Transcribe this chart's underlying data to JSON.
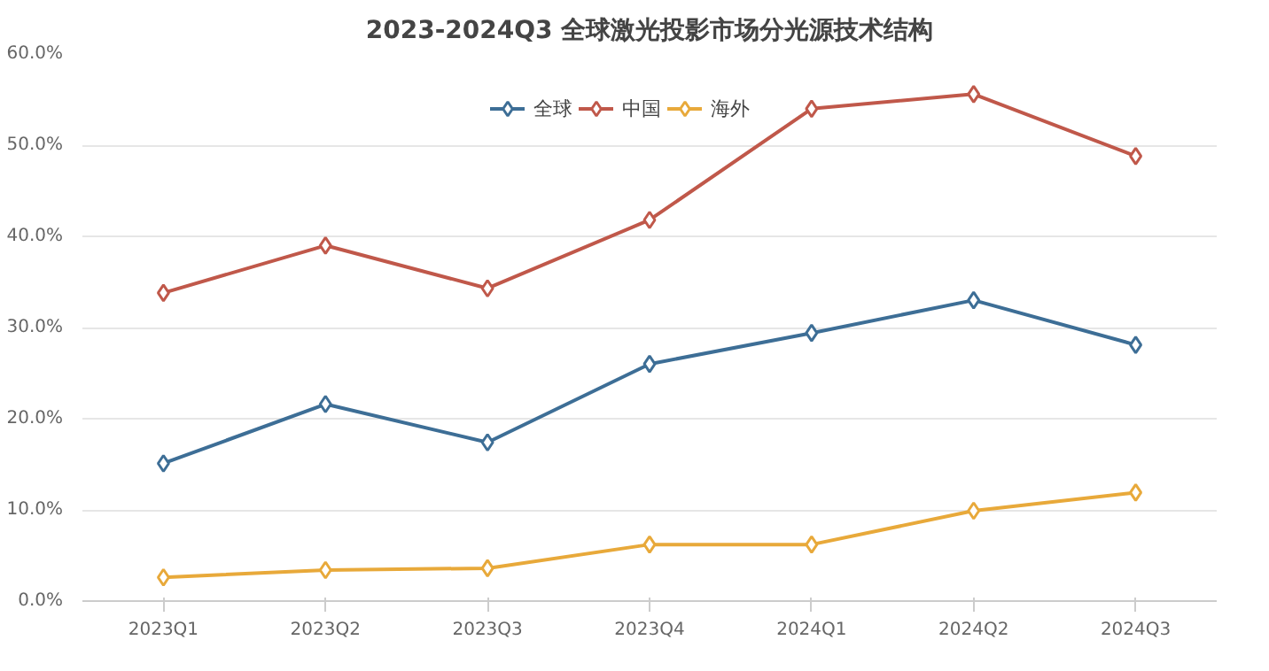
{
  "chart_data": {
    "type": "line",
    "title": "2023-2024Q3 全球激光投影市场分光源技术结构",
    "categories": [
      "2023Q1",
      "2023Q2",
      "2023Q3",
      "2023Q4",
      "2024Q1",
      "2024Q2",
      "2024Q3"
    ],
    "series": [
      {
        "name": "全球",
        "color": "#3d6e96",
        "values": [
          15.1,
          21.6,
          17.4,
          26.0,
          29.4,
          33.0,
          28.1
        ]
      },
      {
        "name": "中国",
        "color": "#c0584a",
        "values": [
          33.8,
          39.0,
          34.3,
          41.8,
          54.0,
          55.6,
          48.8
        ]
      },
      {
        "name": "海外",
        "color": "#e8a93a",
        "values": [
          2.6,
          3.4,
          3.6,
          6.2,
          6.2,
          9.9,
          11.9
        ]
      }
    ],
    "ylim": [
      0,
      60
    ],
    "yticks": [
      {
        "value": 0,
        "label": "0.0%"
      },
      {
        "value": 10,
        "label": "10.0%"
      },
      {
        "value": 20,
        "label": "20.0%"
      },
      {
        "value": 30,
        "label": "30.0%"
      },
      {
        "value": 40,
        "label": "40.0%"
      },
      {
        "value": 50,
        "label": "50.0%"
      },
      {
        "value": 60,
        "label": "60.0%"
      }
    ],
    "grid": "y",
    "legend": "top",
    "marker": "diamond",
    "line_style": "solid"
  }
}
